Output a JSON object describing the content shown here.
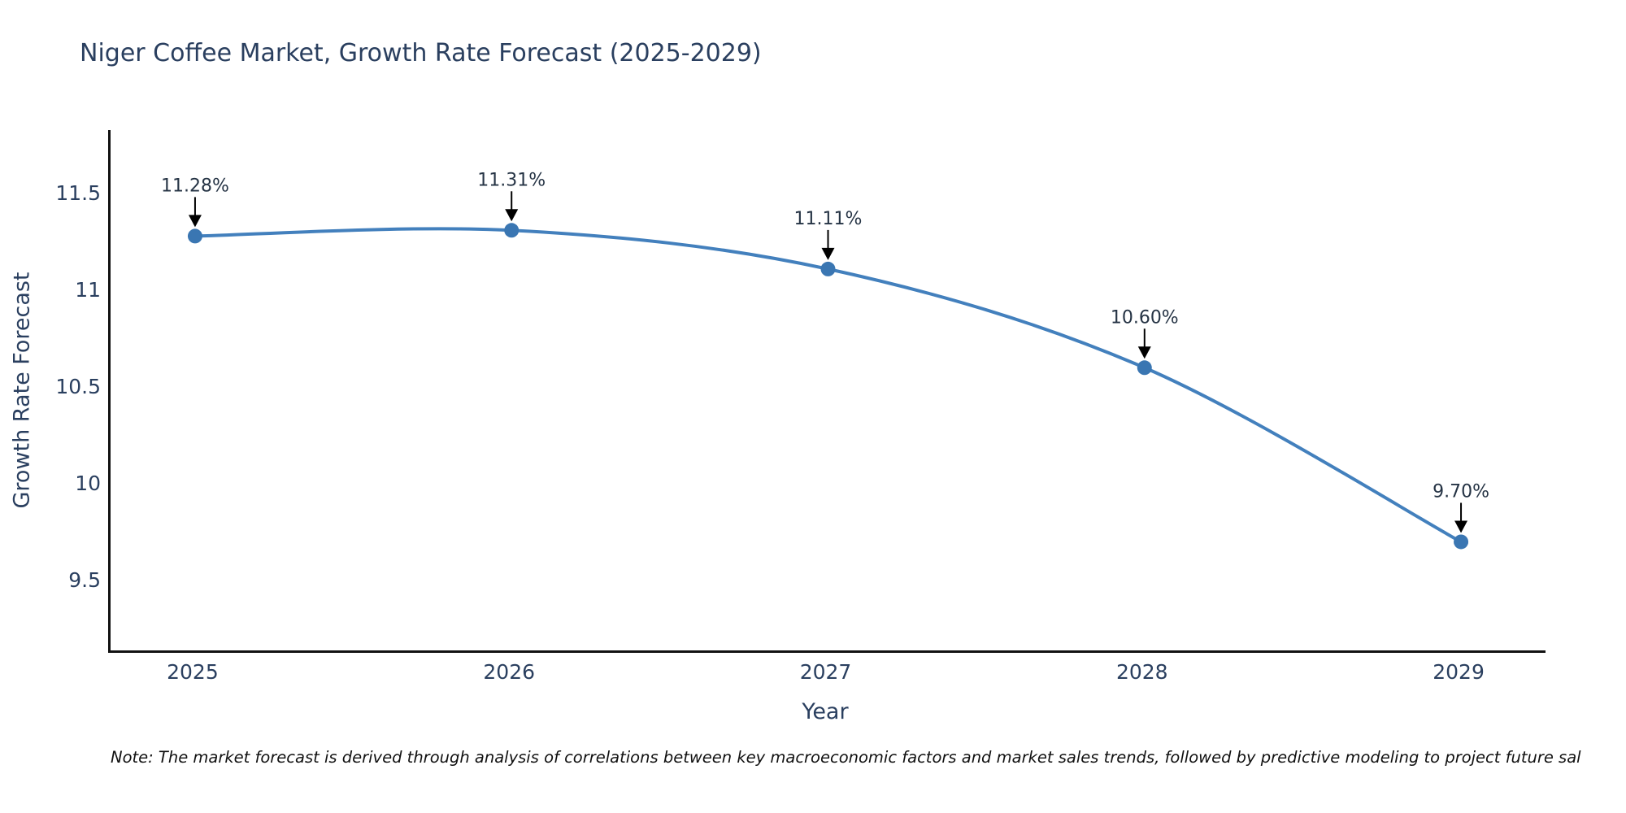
{
  "title": "Niger Coffee Market, Growth Rate Forecast (2025-2029)",
  "note": "Note: The market forecast is derived through analysis of correlations between key macroeconomic factors and market sales trends, followed by predictive modeling to project future sal",
  "chart_data": {
    "type": "line",
    "line_shape": "spline",
    "title": "Niger Coffee Market, Growth Rate Forecast (2025-2029)",
    "xlabel": "Year",
    "ylabel": "Growth Rate Forecast",
    "x": [
      2025,
      2026,
      2027,
      2028,
      2029
    ],
    "values": [
      11.28,
      11.31,
      11.11,
      10.6,
      9.7
    ],
    "point_labels": [
      "11.28%",
      "11.31%",
      "11.11%",
      "10.60%",
      "9.70%"
    ],
    "xticks": [
      {
        "label": "2025",
        "value": 2025
      },
      {
        "label": "2026",
        "value": 2026
      },
      {
        "label": "2027",
        "value": 2027
      },
      {
        "label": "2028",
        "value": 2028
      },
      {
        "label": "2029",
        "value": 2029
      }
    ],
    "yticks": [
      {
        "label": "11.5",
        "value": 11.5
      },
      {
        "label": "11",
        "value": 11.0
      },
      {
        "label": "10.5",
        "value": 10.5
      },
      {
        "label": "10",
        "value": 10.0
      },
      {
        "label": "9.5",
        "value": 9.5
      }
    ],
    "x_range": [
      2024.733,
      2029.267
    ],
    "y_range": [
      9.139,
      11.828
    ],
    "grid": false,
    "legend_position": "none",
    "line_color": "#4380bd",
    "marker_color": "#3a76b2",
    "axis_color": "#111111",
    "text_color": "#2a3f5f",
    "annotation_text_color": "#263445",
    "annotation_arrow_color": "#000000"
  }
}
